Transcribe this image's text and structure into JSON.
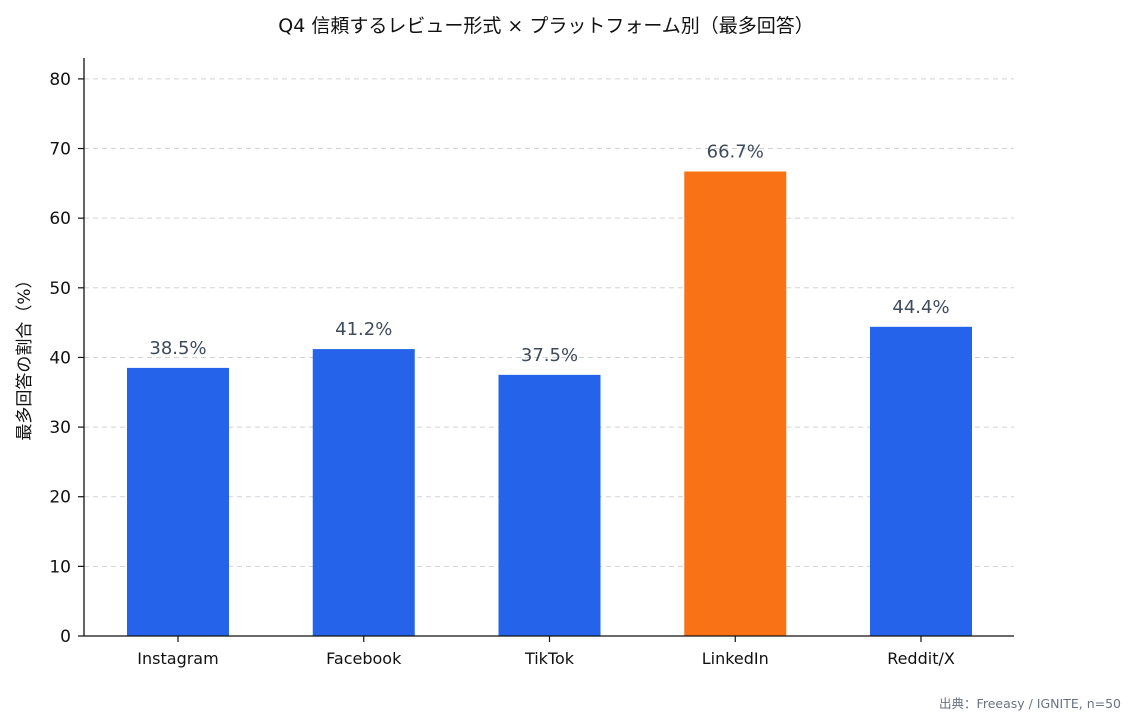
{
  "chart_data": {
    "type": "bar",
    "title": "Q4 信頼するレビュー形式 × プラットフォーム別（最多回答）",
    "xlabel": "",
    "ylabel": "最多回答の割合（%）",
    "categories": [
      "Instagram",
      "Facebook",
      "TikTok",
      "LinkedIn",
      "Reddit/X"
    ],
    "values": [
      38.5,
      41.2,
      37.5,
      66.7,
      44.4
    ],
    "value_labels": [
      "38.5%",
      "41.2%",
      "37.5%",
      "66.7%",
      "44.4%"
    ],
    "colors": [
      "#2563eb",
      "#2563eb",
      "#2563eb",
      "#f97316",
      "#2563eb"
    ],
    "ylim": [
      0,
      83
    ],
    "yticks": [
      0,
      10,
      20,
      30,
      40,
      50,
      60,
      70,
      80
    ],
    "grid": "horizontal dashed",
    "source": "出典：Freeasy / IGNITE, n=50"
  }
}
